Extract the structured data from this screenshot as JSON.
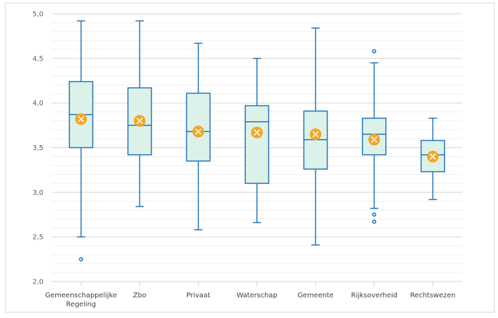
{
  "chart_data": {
    "type": "boxplot",
    "title": "",
    "xlabel": "",
    "ylabel": "",
    "ylim": [
      2.0,
      5.0
    ],
    "yticks": [
      "2,0",
      "2,5",
      "3,0",
      "3,5",
      "4,0",
      "4,5",
      "5,0"
    ],
    "ytick_values": [
      2.0,
      2.5,
      3.0,
      3.5,
      4.0,
      4.5,
      5.0
    ],
    "minor_grid_step": 0.1,
    "grid": true,
    "legend": "none",
    "colors": {
      "box_fill": "#dcf1e8",
      "box_stroke": "#1f73b7",
      "mean_marker": "#f5a623",
      "grid_major": "#d9d9d9",
      "grid_minor": "#efefef"
    },
    "categories": [
      [
        "Gemeenschappelijke",
        "Regeling"
      ],
      [
        "Zbo"
      ],
      [
        "Privaat"
      ],
      [
        "Waterschap"
      ],
      [
        "Gemeente"
      ],
      [
        "Rijksoverheid"
      ],
      [
        "Rechtswezen"
      ]
    ],
    "boxes": [
      {
        "name": "Gemeenschappelijke Regeling",
        "whisker_low": 2.5,
        "q1": 3.5,
        "median": 3.87,
        "q3": 4.24,
        "whisker_high": 4.92,
        "mean": 3.82,
        "outliers": [
          2.25
        ]
      },
      {
        "name": "Zbo",
        "whisker_low": 2.84,
        "q1": 3.42,
        "median": 3.75,
        "q3": 4.17,
        "whisker_high": 4.92,
        "mean": 3.8,
        "outliers": []
      },
      {
        "name": "Privaat",
        "whisker_low": 2.58,
        "q1": 3.35,
        "median": 3.68,
        "q3": 4.11,
        "whisker_high": 4.67,
        "mean": 3.68,
        "outliers": []
      },
      {
        "name": "Waterschap",
        "whisker_low": 2.66,
        "q1": 3.1,
        "median": 3.79,
        "q3": 3.97,
        "whisker_high": 4.5,
        "mean": 3.67,
        "outliers": []
      },
      {
        "name": "Gemeente",
        "whisker_low": 2.41,
        "q1": 3.26,
        "median": 3.59,
        "q3": 3.91,
        "whisker_high": 4.84,
        "mean": 3.65,
        "outliers": []
      },
      {
        "name": "Rijksoverheid",
        "whisker_low": 2.82,
        "q1": 3.42,
        "median": 3.65,
        "q3": 3.83,
        "whisker_high": 4.45,
        "mean": 3.59,
        "outliers": [
          4.58,
          2.75,
          2.67
        ]
      },
      {
        "name": "Rechtswezen",
        "whisker_low": 2.92,
        "q1": 3.23,
        "median": 3.42,
        "q3": 3.58,
        "whisker_high": 3.83,
        "mean": 3.4,
        "outliers": []
      }
    ]
  }
}
